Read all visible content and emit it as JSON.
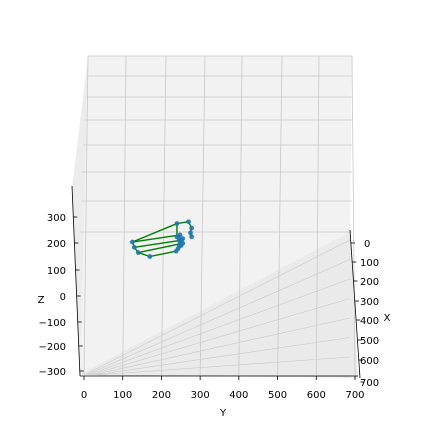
{
  "chart_data": {
    "type": "scatter",
    "projection": "3d",
    "xlabel": "X",
    "ylabel": "Y",
    "zlabel": "Z",
    "x_ticks": [
      "0",
      "100",
      "200",
      "300",
      "400",
      "500",
      "600",
      "700"
    ],
    "y_ticks": [
      "0",
      "100",
      "200",
      "300",
      "400",
      "500",
      "600",
      "700"
    ],
    "z_ticks": [
      "300",
      "200",
      "100",
      "0",
      "−100",
      "−200",
      "−300"
    ],
    "xlim": [
      0,
      700
    ],
    "ylim": [
      0,
      700
    ],
    "zlim": [
      -300,
      350
    ],
    "grid": true,
    "colors": {
      "points": "#1f77b4",
      "lines": "#008000",
      "pane": "#f2f2f2",
      "grid": "#c8c8c8"
    },
    "points": [
      {
        "y": 240,
        "z": 275
      },
      {
        "y": 270,
        "z": 282
      },
      {
        "y": 278,
        "z": 258
      },
      {
        "y": 275,
        "z": 240
      },
      {
        "y": 278,
        "z": 225
      },
      {
        "y": 240,
        "z": 225
      },
      {
        "y": 248,
        "z": 232
      },
      {
        "y": 245,
        "z": 220
      },
      {
        "y": 246,
        "z": 212
      },
      {
        "y": 255,
        "z": 218
      },
      {
        "y": 252,
        "z": 212
      },
      {
        "y": 248,
        "z": 200
      },
      {
        "y": 246,
        "z": 190
      },
      {
        "y": 255,
        "z": 200
      },
      {
        "y": 251,
        "z": 192
      },
      {
        "y": 243,
        "z": 180
      },
      {
        "y": 238,
        "z": 170
      },
      {
        "y": 125,
        "z": 205
      },
      {
        "y": 130,
        "z": 185
      },
      {
        "y": 140,
        "z": 165
      },
      {
        "y": 170,
        "z": 150
      }
    ],
    "edges": [
      [
        0,
        1
      ],
      [
        1,
        2
      ],
      [
        2,
        3
      ],
      [
        3,
        4
      ],
      [
        0,
        17
      ],
      [
        17,
        18
      ],
      [
        18,
        19
      ],
      [
        19,
        20
      ],
      [
        20,
        16
      ],
      [
        17,
        6
      ],
      [
        18,
        10
      ],
      [
        19,
        13
      ],
      [
        0,
        5
      ],
      [
        5,
        6
      ],
      [
        6,
        7
      ],
      [
        7,
        8
      ],
      [
        9,
        10
      ],
      [
        10,
        11
      ],
      [
        11,
        12
      ],
      [
        13,
        14
      ],
      [
        14,
        15
      ],
      [
        15,
        16
      ]
    ]
  }
}
